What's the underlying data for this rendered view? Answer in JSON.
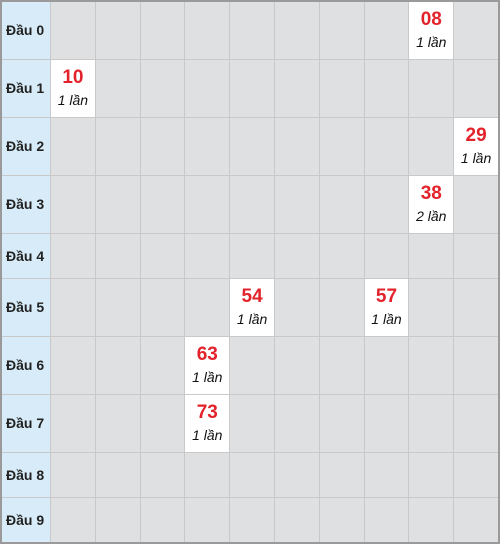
{
  "rows": [
    {
      "label": "Đầu 0",
      "cells": [
        null,
        null,
        null,
        null,
        null,
        null,
        null,
        null,
        {
          "number": "08",
          "count": "1 lần"
        },
        null
      ]
    },
    {
      "label": "Đầu 1",
      "cells": [
        {
          "number": "10",
          "count": "1 lần"
        },
        null,
        null,
        null,
        null,
        null,
        null,
        null,
        null,
        null
      ]
    },
    {
      "label": "Đầu 2",
      "cells": [
        null,
        null,
        null,
        null,
        null,
        null,
        null,
        null,
        null,
        {
          "number": "29",
          "count": "1 lần"
        }
      ]
    },
    {
      "label": "Đầu 3",
      "cells": [
        null,
        null,
        null,
        null,
        null,
        null,
        null,
        null,
        {
          "number": "38",
          "count": "2 lần"
        },
        null
      ]
    },
    {
      "label": "Đầu 4",
      "cells": [
        null,
        null,
        null,
        null,
        null,
        null,
        null,
        null,
        null,
        null
      ]
    },
    {
      "label": "Đầu 5",
      "cells": [
        null,
        null,
        null,
        null,
        {
          "number": "54",
          "count": "1 lần"
        },
        null,
        null,
        {
          "number": "57",
          "count": "1 lần"
        },
        null,
        null
      ]
    },
    {
      "label": "Đầu 6",
      "cells": [
        null,
        null,
        null,
        {
          "number": "63",
          "count": "1 lần"
        },
        null,
        null,
        null,
        null,
        null,
        null
      ]
    },
    {
      "label": "Đầu 7",
      "cells": [
        null,
        null,
        null,
        {
          "number": "73",
          "count": "1 lần"
        },
        null,
        null,
        null,
        null,
        null,
        null
      ]
    },
    {
      "label": "Đầu 8",
      "cells": [
        null,
        null,
        null,
        null,
        null,
        null,
        null,
        null,
        null,
        null
      ]
    },
    {
      "label": "Đầu 9",
      "cells": [
        null,
        null,
        null,
        null,
        null,
        null,
        null,
        null,
        null,
        null
      ]
    }
  ]
}
